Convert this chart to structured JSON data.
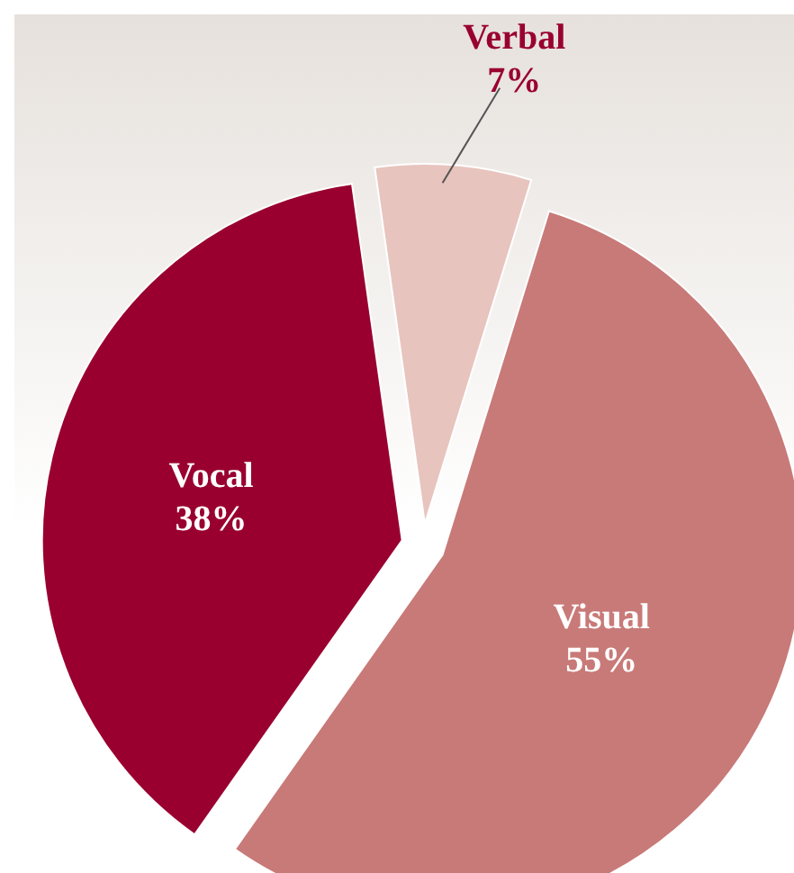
{
  "chart_data": {
    "type": "pie",
    "categories": [
      "Verbal",
      "Visual",
      "Vocal"
    ],
    "values": [
      7,
      55,
      38
    ],
    "colors": [
      "#e8c4be",
      "#c87a78",
      "#990030"
    ],
    "value_labels": [
      "7%",
      "55%",
      "38%"
    ]
  }
}
